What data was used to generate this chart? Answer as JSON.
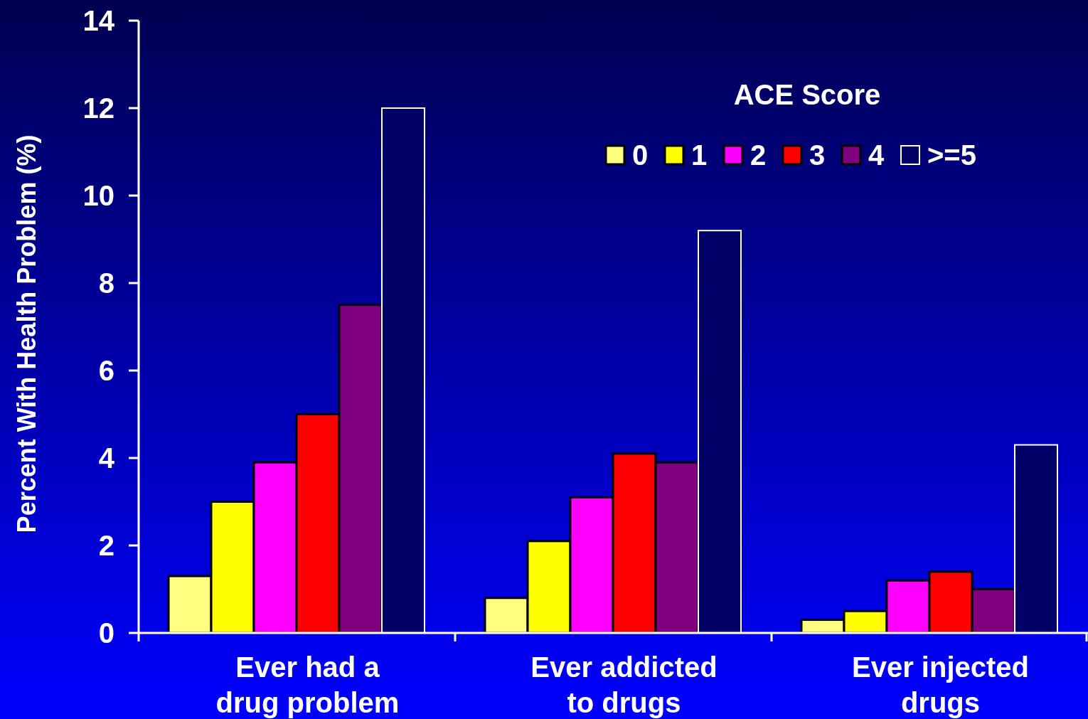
{
  "chart_data": {
    "type": "bar",
    "ylabel": "Percent With Health Problem  (%)",
    "legend_title": "ACE Score",
    "categories": [
      "Ever had a\ndrug problem",
      "Ever addicted\nto drugs",
      "Ever injected\ndrugs"
    ],
    "series": [
      {
        "name": "0",
        "color": "#ffff80",
        "values": [
          1.3,
          0.8,
          0.3
        ]
      },
      {
        "name": "1",
        "color": "#ffff00",
        "values": [
          3.0,
          2.1,
          0.5
        ]
      },
      {
        "name": "2",
        "color": "#ff00ff",
        "values": [
          3.9,
          3.1,
          1.2
        ]
      },
      {
        "name": "3",
        "color": "#ff0000",
        "values": [
          5.0,
          4.1,
          1.4
        ]
      },
      {
        "name": "4",
        "color": "#800080",
        "values": [
          7.5,
          3.9,
          1.0
        ]
      },
      {
        "name": ">=5",
        "color": "#000066",
        "values": [
          12.0,
          9.2,
          4.3
        ]
      }
    ],
    "ylim": [
      0,
      14
    ],
    "yticks": [
      0,
      2,
      4,
      6,
      8,
      10,
      12,
      14
    ],
    "legend": "top right"
  }
}
